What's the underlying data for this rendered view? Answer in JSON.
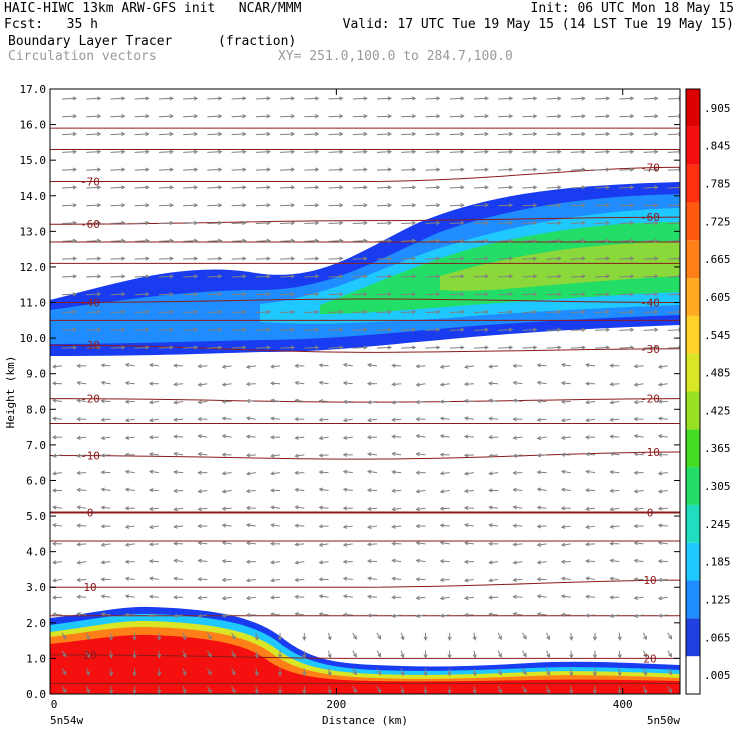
{
  "header": {
    "line1_left": "HAIC-HIWC 13km ARW-GFS init   NCAR/MMM",
    "line1_right": "Init: 06 UTC Mon 18 May 15",
    "line2_left": "Fcst:   35 h",
    "line2_right": "Valid: 17 UTC Tue 19 May 15 (14 LST Tue 19 May 15)",
    "line3_field": "Boundary Layer Tracer",
    "line3_units": "(fraction)",
    "line4_field": "Circulation vectors",
    "line4_xy": "XY= 251.0,100.0 to 284.7,100.0"
  },
  "chart_data": {
    "type": "heatmap",
    "xlabel": "Distance (km)",
    "ylabel": "Height (km)",
    "xlim": [
      0,
      440
    ],
    "ylim": [
      0,
      17
    ],
    "x_ticks": [
      0,
      200,
      400
    ],
    "y_ticks": [
      "0.0",
      "1.0",
      "2.0",
      "3.0",
      "4.0",
      "5.0",
      "6.0",
      "7.0",
      "8.0",
      "9.0",
      "10.0",
      "11.0",
      "12.0",
      "13.0",
      "14.0",
      "15.0",
      "16.0",
      "17.0"
    ],
    "x_end_labels": {
      "left": "5n54w",
      "right": "5n50w"
    },
    "colorbar": {
      "labels": [
        ".005",
        ".065",
        ".125",
        ".185",
        ".245",
        ".305",
        ".365",
        ".425",
        ".485",
        ".545",
        ".605",
        ".665",
        ".725",
        ".785",
        ".845",
        ".905"
      ],
      "colors": [
        "#ffffff",
        "#2040e0",
        "#1f8cff",
        "#1fc8ff",
        "#20ddc0",
        "#22dd66",
        "#44dd22",
        "#99e022",
        "#d8e626",
        "#ffd22a",
        "#ffaa20",
        "#ff8018",
        "#ff5a10",
        "#ff3010",
        "#f51010",
        "#dd0000"
      ]
    },
    "isotherms": [
      {
        "label": "-70",
        "y": [
          14.4,
          14.4,
          14.8
        ]
      },
      {
        "label": "-60",
        "y": [
          13.2,
          13.3,
          13.4
        ]
      },
      {
        "label": "-40",
        "y": [
          11.0,
          11.1,
          11.0
        ]
      },
      {
        "label": "-30",
        "y": [
          9.8,
          9.6,
          9.7
        ]
      },
      {
        "label": "-20",
        "y": [
          8.3,
          8.2,
          8.3
        ]
      },
      {
        "label": "-10",
        "y": [
          6.7,
          6.6,
          6.8
        ]
      },
      {
        "label": "0",
        "y": [
          5.1,
          5.1,
          5.1
        ]
      },
      {
        "label": "10",
        "y": [
          3.0,
          3.0,
          3.2
        ]
      },
      {
        "label": "20",
        "y": [
          1.1,
          1.0,
          1.0
        ]
      }
    ],
    "unlabeled_isotherm_heights": [
      15.9,
      15.3,
      12.7,
      12.1,
      10.5,
      7.6,
      4.3,
      2.2,
      0.3
    ]
  }
}
